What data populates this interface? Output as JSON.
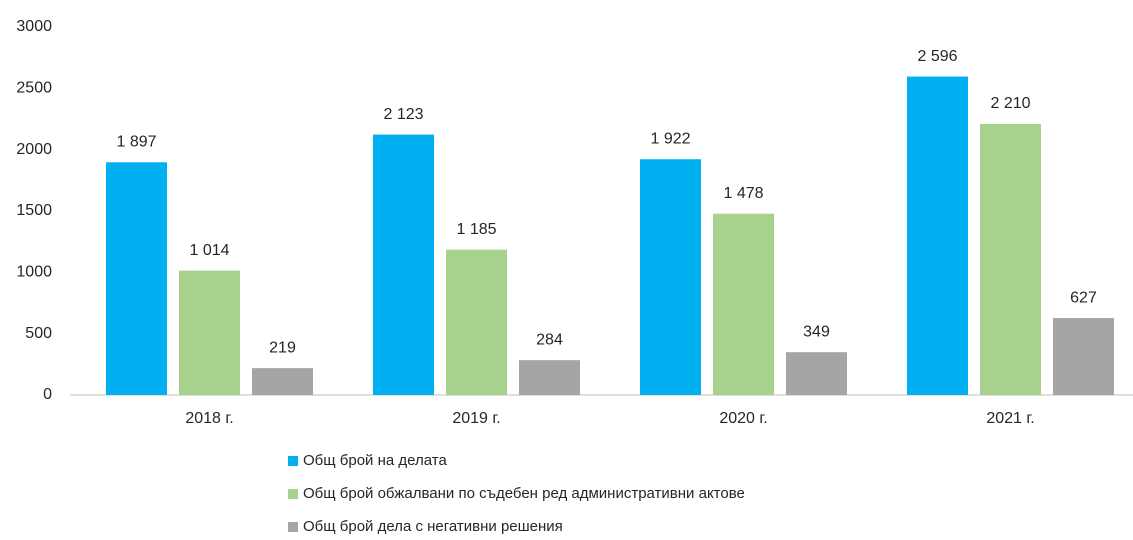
{
  "chart_data": {
    "type": "bar",
    "categories": [
      "2018 г.",
      "2019 г.",
      "2020 г.",
      "2021 г."
    ],
    "series": [
      {
        "name": "Общ брой на делата",
        "color": "#00b0f0",
        "values": [
          1897,
          2123,
          1922,
          2596
        ],
        "value_labels": [
          "1 897",
          "2 123",
          "1 922",
          "2 596"
        ]
      },
      {
        "name": "Общ брой обжалвани по съдебен ред административни актове",
        "color": "#a9d18e",
        "values": [
          1014,
          1185,
          1478,
          2210
        ],
        "value_labels": [
          "1 014",
          "1 185",
          "1 478",
          "2 210"
        ]
      },
      {
        "name": "Общ брой дела с негативни решения",
        "color": "#a5a5a5",
        "values": [
          219,
          284,
          349,
          627
        ],
        "value_labels": [
          "219",
          "284",
          "349",
          "627"
        ]
      }
    ],
    "ylim": [
      0,
      3000
    ],
    "yticks": [
      0,
      500,
      1000,
      1500,
      2000,
      2500,
      3000
    ],
    "grid": false,
    "legend": "bottom"
  }
}
